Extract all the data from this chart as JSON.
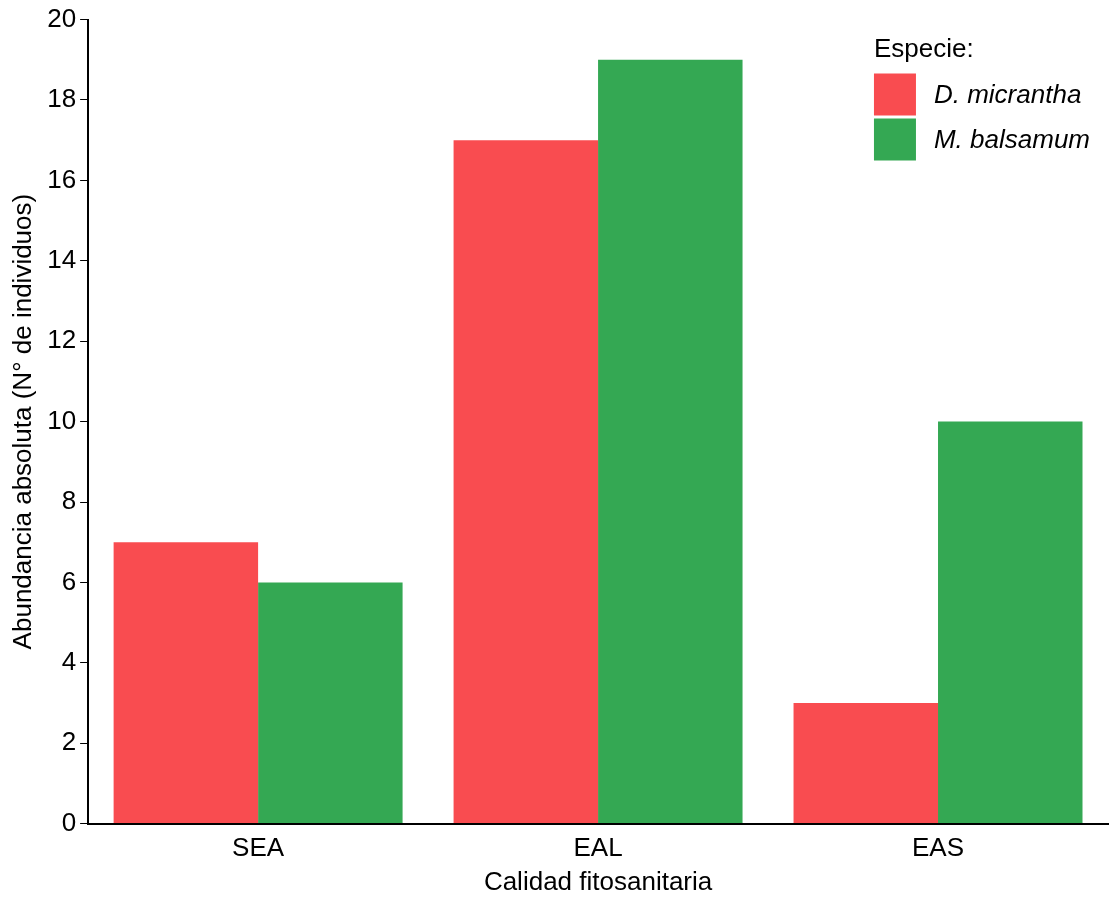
{
  "chart_data": {
    "type": "bar",
    "xlabel": "Calidad fitosanitaria",
    "ylabel": "Abundancia absoluta (N° de individuos)",
    "categories": [
      "SEA",
      "EAL",
      "EAS"
    ],
    "series": [
      {
        "name": "D. micrantha",
        "color": "#f94c50",
        "values": [
          7,
          17,
          3
        ]
      },
      {
        "name": "M. balsamum",
        "color": "#34a853",
        "values": [
          6,
          19,
          10
        ]
      }
    ],
    "ylim": [
      0,
      20
    ],
    "yticks": [
      0,
      2,
      4,
      6,
      8,
      10,
      12,
      14,
      16,
      18,
      20
    ],
    "grid": false,
    "legend": "top right",
    "legend_title": "Especie:"
  }
}
